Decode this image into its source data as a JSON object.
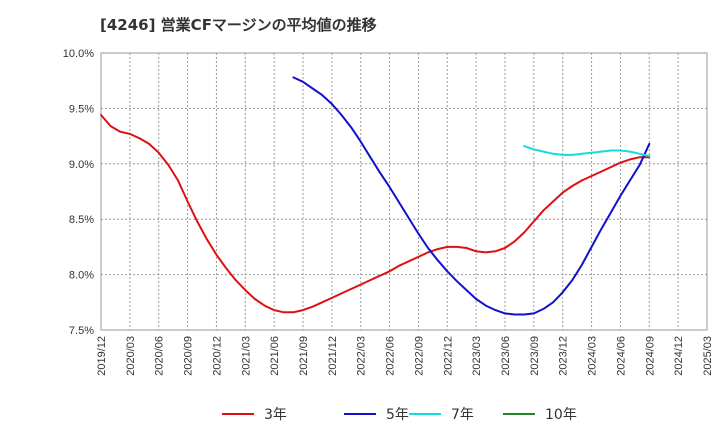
{
  "chart_data": {
    "type": "line",
    "title": "[4246]  営業CFマージンの平均値の推移",
    "xlabel": "",
    "ylabel": "",
    "x_ticks": [
      "2019/12",
      "2020/03",
      "2020/06",
      "2020/09",
      "2020/12",
      "2021/03",
      "2021/06",
      "2021/09",
      "2021/12",
      "2022/03",
      "2022/06",
      "2022/09",
      "2022/12",
      "2023/03",
      "2023/06",
      "2023/09",
      "2023/12",
      "2024/03",
      "2024/06",
      "2024/09",
      "2024/12",
      "2025/03"
    ],
    "y_ticks": [
      "7.5%",
      "8.0%",
      "8.5%",
      "9.0%",
      "9.5%",
      "10.0%"
    ],
    "ylim": [
      7.5,
      10.0
    ],
    "grid": true,
    "legend_position": "bottom",
    "series": [
      {
        "name": "3年",
        "color": "#dd1111",
        "x": [
          "2019/12",
          "2020/01",
          "2020/02",
          "2020/03",
          "2020/04",
          "2020/05",
          "2020/06",
          "2020/07",
          "2020/08",
          "2020/09",
          "2020/10",
          "2020/11",
          "2020/12",
          "2021/01",
          "2021/02",
          "2021/03",
          "2021/04",
          "2021/05",
          "2021/06",
          "2021/07",
          "2021/08",
          "2021/09",
          "2021/10",
          "2021/11",
          "2021/12",
          "2022/01",
          "2022/02",
          "2022/03",
          "2022/04",
          "2022/05",
          "2022/06",
          "2022/07",
          "2022/08",
          "2022/09",
          "2022/10",
          "2022/11",
          "2022/12",
          "2023/01",
          "2023/02",
          "2023/03",
          "2023/04",
          "2023/05",
          "2023/06",
          "2023/07",
          "2023/08",
          "2023/09",
          "2023/10",
          "2023/11",
          "2023/12",
          "2024/01",
          "2024/02",
          "2024/03",
          "2024/04",
          "2024/05",
          "2024/06",
          "2024/07",
          "2024/08",
          "2024/09"
        ],
        "values": [
          9.44,
          9.34,
          9.29,
          9.27,
          9.23,
          9.18,
          9.1,
          8.99,
          8.85,
          8.66,
          8.48,
          8.32,
          8.18,
          8.06,
          7.95,
          7.86,
          7.78,
          7.72,
          7.68,
          7.66,
          7.66,
          7.68,
          7.71,
          7.75,
          7.79,
          7.83,
          7.87,
          7.91,
          7.95,
          7.99,
          8.03,
          8.08,
          8.12,
          8.16,
          8.2,
          8.23,
          8.25,
          8.25,
          8.24,
          8.21,
          8.2,
          8.21,
          8.24,
          8.3,
          8.38,
          8.48,
          8.58,
          8.66,
          8.74,
          8.8,
          8.85,
          8.89,
          8.93,
          8.97,
          9.01,
          9.04,
          9.06,
          9.06
        ]
      },
      {
        "name": "5年",
        "color": "#1111cc",
        "x": [
          "2021/08",
          "2021/09",
          "2021/10",
          "2021/11",
          "2021/12",
          "2022/01",
          "2022/02",
          "2022/03",
          "2022/04",
          "2022/05",
          "2022/06",
          "2022/07",
          "2022/08",
          "2022/09",
          "2022/10",
          "2022/11",
          "2022/12",
          "2023/01",
          "2023/02",
          "2023/03",
          "2023/04",
          "2023/05",
          "2023/06",
          "2023/07",
          "2023/08",
          "2023/09",
          "2023/10",
          "2023/11",
          "2023/12",
          "2024/01",
          "2024/02",
          "2024/03",
          "2024/04",
          "2024/05",
          "2024/06",
          "2024/07",
          "2024/08",
          "2024/09"
        ],
        "values": [
          9.78,
          9.74,
          9.68,
          9.62,
          9.54,
          9.44,
          9.33,
          9.2,
          9.06,
          8.92,
          8.79,
          8.65,
          8.51,
          8.37,
          8.24,
          8.13,
          8.03,
          7.94,
          7.86,
          7.78,
          7.72,
          7.68,
          7.65,
          7.64,
          7.64,
          7.65,
          7.69,
          7.75,
          7.84,
          7.95,
          8.09,
          8.25,
          8.41,
          8.56,
          8.71,
          8.85,
          8.99,
          9.18
        ]
      },
      {
        "name": "7年",
        "color": "#11dddd",
        "x": [
          "2023/08",
          "2023/09",
          "2023/10",
          "2023/11",
          "2023/12",
          "2024/01",
          "2024/02",
          "2024/03",
          "2024/04",
          "2024/05",
          "2024/06",
          "2024/07",
          "2024/08",
          "2024/09"
        ],
        "values": [
          9.16,
          9.13,
          9.11,
          9.09,
          9.08,
          9.08,
          9.09,
          9.1,
          9.11,
          9.12,
          9.12,
          9.11,
          9.09,
          9.07
        ]
      },
      {
        "name": "10年",
        "color": "#228822",
        "x": [],
        "values": []
      }
    ]
  }
}
